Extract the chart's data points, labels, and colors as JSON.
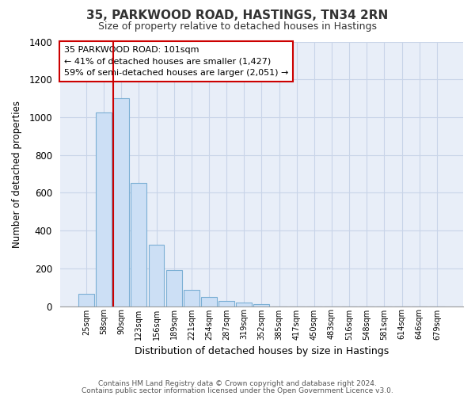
{
  "title": "35, PARKWOOD ROAD, HASTINGS, TN34 2RN",
  "subtitle": "Size of property relative to detached houses in Hastings",
  "xlabel": "Distribution of detached houses by size in Hastings",
  "ylabel": "Number of detached properties",
  "bar_labels": [
    "25sqm",
    "58sqm",
    "90sqm",
    "123sqm",
    "156sqm",
    "189sqm",
    "221sqm",
    "254sqm",
    "287sqm",
    "319sqm",
    "352sqm",
    "385sqm",
    "417sqm",
    "450sqm",
    "483sqm",
    "516sqm",
    "548sqm",
    "581sqm",
    "614sqm",
    "646sqm",
    "679sqm"
  ],
  "bar_values": [
    65,
    1025,
    1100,
    650,
    325,
    190,
    85,
    48,
    28,
    20,
    12,
    0,
    0,
    0,
    0,
    0,
    0,
    0,
    0,
    0,
    0
  ],
  "bar_fill_color": "#ccdff5",
  "bar_edge_color": "#7bafd4",
  "vline_bar_index": 2,
  "vline_color": "#cc0000",
  "ylim": [
    0,
    1400
  ],
  "yticks": [
    0,
    200,
    400,
    600,
    800,
    1000,
    1200,
    1400
  ],
  "annotation_title": "35 PARKWOOD ROAD: 101sqm",
  "annotation_line1": "← 41% of detached houses are smaller (1,427)",
  "annotation_line2": "59% of semi-detached houses are larger (2,051) →",
  "annotation_box_color": "#ffffff",
  "annotation_box_edge": "#cc0000",
  "footer_line1": "Contains HM Land Registry data © Crown copyright and database right 2024.",
  "footer_line2": "Contains public sector information licensed under the Open Government Licence v3.0.",
  "background_color": "#ffffff",
  "plot_bg_color": "#e8eef8",
  "grid_color": "#c8d4e8"
}
